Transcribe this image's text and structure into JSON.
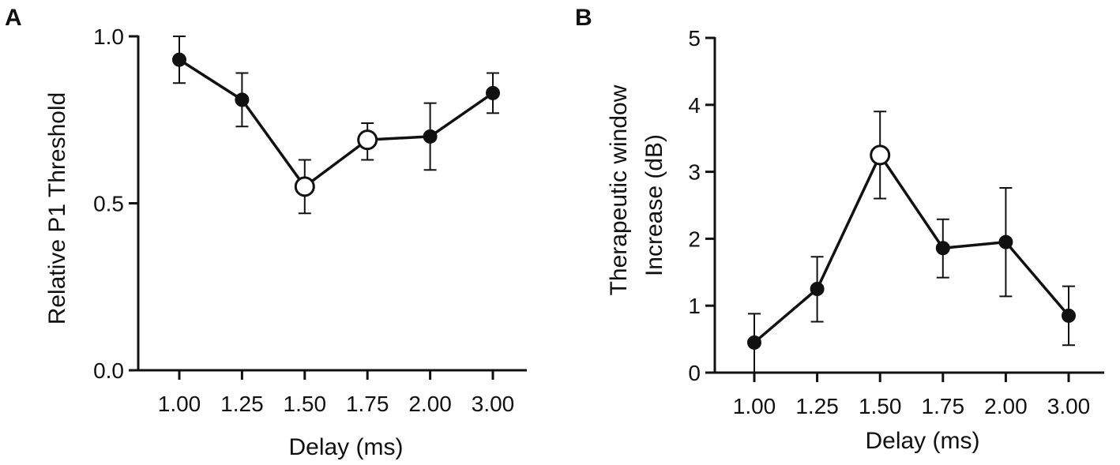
{
  "figure": {
    "colors": {
      "ink": "#111111",
      "marker_fill": "#111111",
      "hollow_fill": "#ffffff"
    }
  },
  "chart_data": [
    {
      "panel": "A",
      "type": "line",
      "categories": [
        "1.00",
        "1.25",
        "1.50",
        "1.75",
        "2.00",
        "3.00"
      ],
      "xlabel": "Delay (ms)",
      "ylabel": "Relative P1 Threshold",
      "ylim": [
        0,
        1.0
      ],
      "yticks": [
        0.0,
        0.5,
        1.0
      ],
      "ytick_labels": [
        "0.0",
        "0.5",
        "1.0"
      ],
      "series": [
        {
          "name": "Relative P1 Threshold",
          "values": [
            0.93,
            0.81,
            0.55,
            0.69,
            0.7,
            0.83
          ],
          "error_low": [
            0.86,
            0.73,
            0.47,
            0.63,
            0.6,
            0.77
          ],
          "error_high": [
            1.0,
            0.89,
            0.63,
            0.74,
            0.8,
            0.89
          ],
          "hollow_markers": [
            false,
            false,
            true,
            true,
            false,
            false
          ]
        }
      ]
    },
    {
      "panel": "B",
      "type": "line",
      "categories": [
        "1.00",
        "1.25",
        "1.50",
        "1.75",
        "2.00",
        "3.00"
      ],
      "xlabel": "Delay (ms)",
      "ylabel_lines": [
        "Therapeutic window",
        "Increase (dB)"
      ],
      "ylim": [
        0,
        5
      ],
      "yticks": [
        0,
        1,
        2,
        3,
        4,
        5
      ],
      "ytick_labels": [
        "0",
        "1",
        "2",
        "3",
        "4",
        "5"
      ],
      "series": [
        {
          "name": "Therapeutic window Increase (dB)",
          "values": [
            0.45,
            1.25,
            3.25,
            1.86,
            1.95,
            0.85
          ],
          "error_low": [
            0.0,
            0.76,
            2.6,
            1.42,
            1.14,
            0.41
          ],
          "error_high": [
            0.88,
            1.73,
            3.9,
            2.29,
            2.76,
            1.29
          ],
          "hollow_markers": [
            false,
            false,
            true,
            false,
            false,
            false
          ]
        }
      ]
    }
  ]
}
